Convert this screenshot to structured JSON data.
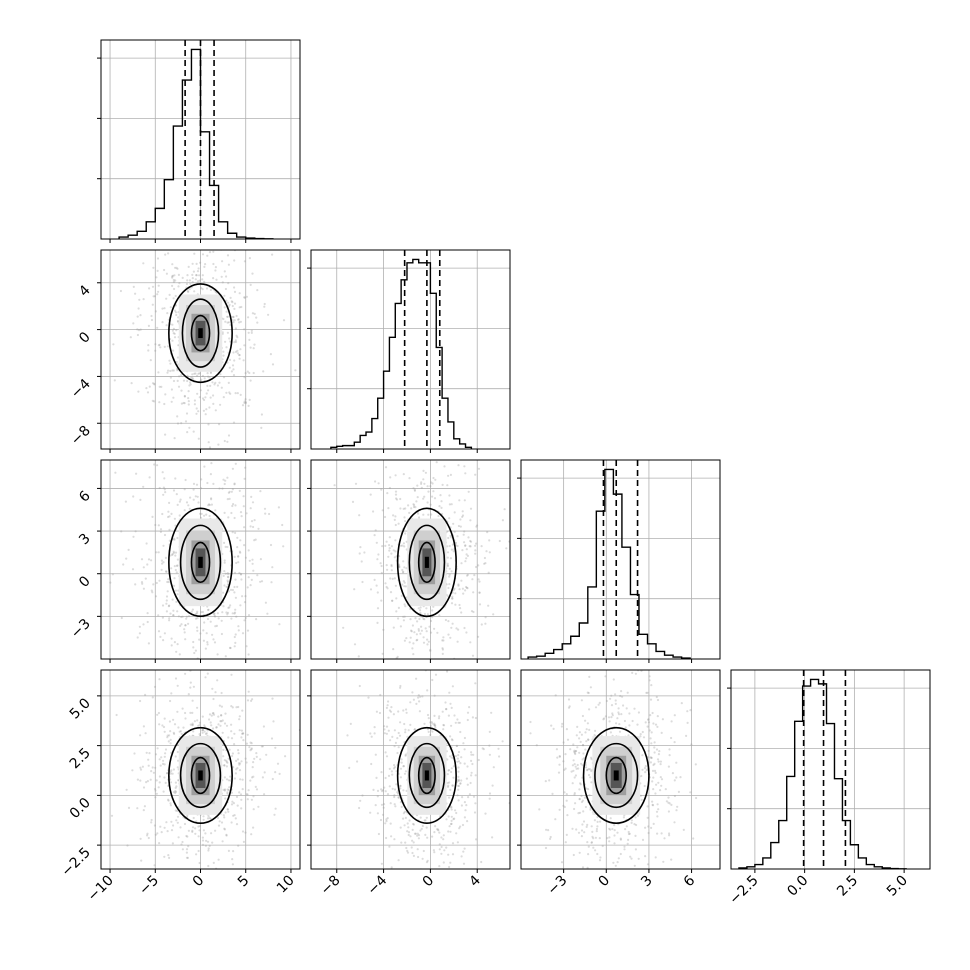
{
  "chart_data": {
    "type": "corner",
    "grid": true,
    "quantile_lines": "dashed",
    "ticks": [
      {
        "values": [
          -10,
          -5,
          0,
          5,
          10
        ],
        "labels": [
          "−10",
          "−5",
          "0",
          "5",
          "10"
        ]
      },
      {
        "values": [
          -8,
          -4,
          0,
          4
        ],
        "labels": [
          "−8",
          "−4",
          "0",
          "4"
        ]
      },
      {
        "values": [
          -3,
          0,
          3,
          6
        ],
        "labels": [
          "−3",
          "0",
          "3",
          "6"
        ]
      },
      {
        "values": [
          -2.5,
          0.0,
          2.5,
          5.0
        ],
        "labels": [
          "−2.5",
          "0.0",
          "2.5",
          "5.0"
        ]
      }
    ],
    "params": [
      {
        "range": [
          -11,
          11
        ],
        "quantiles": [
          -1.7,
          0.0,
          1.5
        ],
        "hist_edges": [
          -9,
          -8,
          -7,
          -6,
          -5,
          -4,
          -3,
          -2,
          -1,
          0,
          1,
          2,
          3,
          4,
          5,
          6,
          7,
          8
        ],
        "hist_values": [
          0.01,
          0.02,
          0.04,
          0.09,
          0.16,
          0.31,
          0.59,
          0.83,
          0.99,
          0.56,
          0.28,
          0.09,
          0.03,
          0.01,
          0.005,
          0.002,
          0.001
        ]
      },
      {
        "range": [
          -10.2,
          6.8
        ],
        "quantiles": [
          -2.2,
          -0.3,
          0.8
        ],
        "hist_edges": [
          -8.5,
          -8,
          -7.5,
          -7,
          -6.5,
          -6,
          -5.5,
          -5,
          -4.5,
          -4,
          -3.5,
          -3,
          -2.5,
          -2,
          -1.5,
          -1,
          -0.5,
          0,
          0.5,
          1,
          1.5,
          2,
          2.5,
          3,
          3.5
        ],
        "hist_values": [
          0.005,
          0.008,
          0.01,
          0.01,
          0.02,
          0.04,
          0.05,
          0.09,
          0.15,
          0.23,
          0.33,
          0.43,
          0.5,
          0.55,
          0.56,
          0.55,
          0.55,
          0.46,
          0.3,
          0.15,
          0.08,
          0.03,
          0.015,
          0.005
        ]
      },
      {
        "range": [
          -6.0,
          8.0
        ],
        "quantiles": [
          -0.2,
          0.7,
          2.2
        ],
        "hist_edges": [
          -5.5,
          -4.9,
          -4.3,
          -3.7,
          -3.1,
          -2.5,
          -1.9,
          -1.3,
          -0.7,
          -0.1,
          0.5,
          1.1,
          1.7,
          2.3,
          2.9,
          3.5,
          4.1,
          4.7,
          5.3,
          5.9
        ],
        "hist_values": [
          0.01,
          0.015,
          0.03,
          0.05,
          0.08,
          0.12,
          0.19,
          0.38,
          0.78,
          1.0,
          0.87,
          0.59,
          0.34,
          0.13,
          0.08,
          0.04,
          0.02,
          0.01,
          0.005
        ]
      },
      {
        "range": [
          -3.7,
          6.3
        ],
        "quantiles": [
          -0.05,
          0.95,
          2.05
        ],
        "hist_edges": [
          -3.3,
          -2.9,
          -2.5,
          -2.1,
          -1.7,
          -1.3,
          -0.9,
          -0.5,
          -0.1,
          0.3,
          0.7,
          1.1,
          1.5,
          1.9,
          2.3,
          2.7,
          3.1,
          3.5,
          3.9,
          4.3,
          4.7,
          5.1
        ],
        "hist_values": [
          0.005,
          0.01,
          0.02,
          0.05,
          0.12,
          0.22,
          0.42,
          0.67,
          0.83,
          0.86,
          0.84,
          0.66,
          0.41,
          0.22,
          0.11,
          0.05,
          0.02,
          0.01,
          0.005,
          0.002,
          0.001
        ]
      }
    ],
    "pairs": [
      {
        "row": 1,
        "col": 0,
        "center": [
          0.0,
          -0.3
        ],
        "levels": [
          [
            1.0,
            1.5
          ],
          [
            2.0,
            2.9
          ],
          [
            3.5,
            4.2
          ]
        ]
      },
      {
        "row": 2,
        "col": 0,
        "center": [
          0.0,
          0.8
        ],
        "levels": [
          [
            1.0,
            1.4
          ],
          [
            2.2,
            2.6
          ],
          [
            3.5,
            3.8
          ]
        ]
      },
      {
        "row": 2,
        "col": 1,
        "center": [
          -0.3,
          0.8
        ],
        "levels": [
          [
            0.7,
            1.4
          ],
          [
            1.5,
            2.6
          ],
          [
            2.5,
            3.8
          ]
        ]
      },
      {
        "row": 3,
        "col": 0,
        "center": [
          0.0,
          1.0
        ],
        "levels": [
          [
            1.0,
            0.9
          ],
          [
            2.2,
            1.6
          ],
          [
            3.5,
            2.4
          ]
        ]
      },
      {
        "row": 3,
        "col": 1,
        "center": [
          -0.3,
          1.0
        ],
        "levels": [
          [
            0.7,
            0.9
          ],
          [
            1.5,
            1.6
          ],
          [
            2.5,
            2.4
          ]
        ]
      },
      {
        "row": 3,
        "col": 2,
        "center": [
          0.7,
          1.0
        ],
        "levels": [
          [
            0.7,
            0.9
          ],
          [
            1.5,
            1.6
          ],
          [
            2.3,
            2.4
          ]
        ]
      }
    ]
  }
}
